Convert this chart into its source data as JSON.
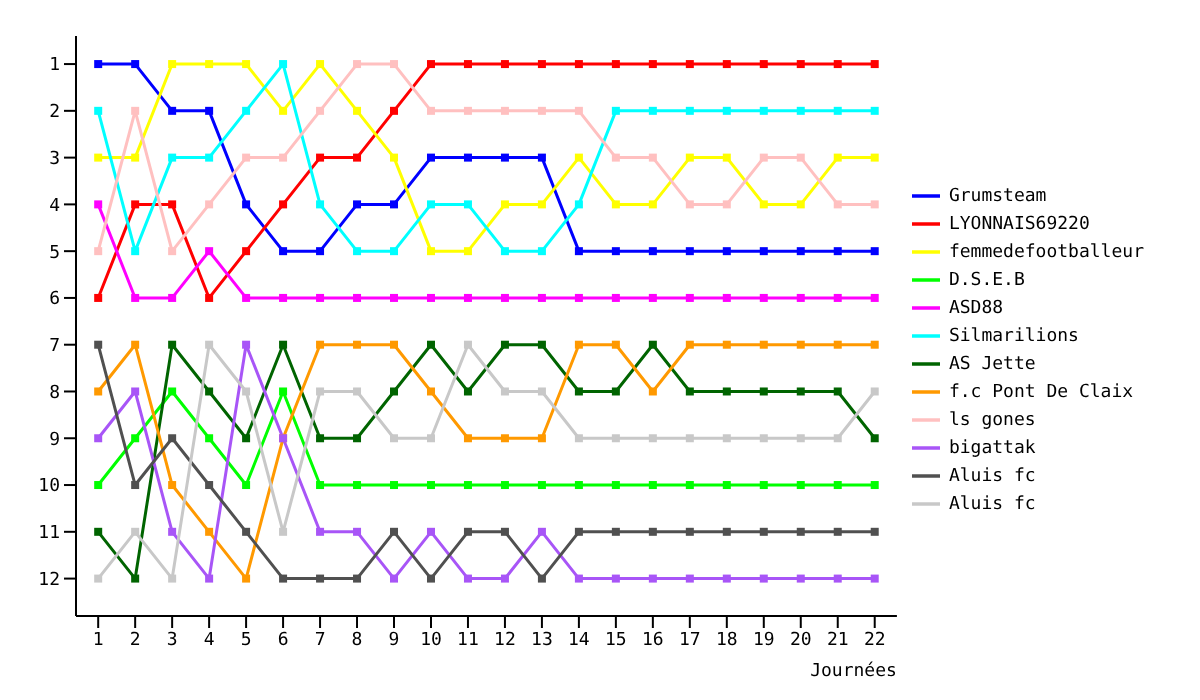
{
  "chart_data": {
    "type": "line",
    "xlabel": "Journées",
    "marker": "square",
    "line_style": "solid",
    "grid": false,
    "legend": "right",
    "x": [
      1,
      2,
      3,
      4,
      5,
      6,
      7,
      8,
      9,
      10,
      11,
      12,
      13,
      14,
      15,
      16,
      17,
      18,
      19,
      20,
      21,
      22
    ],
    "xlim": [
      0.4,
      22.6
    ],
    "xticks": [
      1,
      2,
      3,
      4,
      5,
      6,
      7,
      8,
      9,
      10,
      11,
      12,
      13,
      14,
      15,
      16,
      17,
      18,
      19,
      20,
      21,
      22
    ],
    "ylim": [
      12.8,
      0.4
    ],
    "yticks": [
      1,
      2,
      3,
      4,
      5,
      6,
      7,
      8,
      9,
      10,
      11,
      12
    ],
    "series": [
      {
        "name": "Grumsteam",
        "color": "#0000ff",
        "values": [
          1,
          1,
          2,
          2,
          4,
          5,
          5,
          4,
          4,
          3,
          3,
          3,
          3,
          5,
          5,
          5,
          5,
          5,
          5,
          5,
          5,
          5
        ]
      },
      {
        "name": "LYONNAIS69220",
        "color": "#ff0000",
        "values": [
          6,
          4,
          4,
          6,
          5,
          4,
          3,
          3,
          2,
          1,
          1,
          1,
          1,
          1,
          1,
          1,
          1,
          1,
          1,
          1,
          1,
          1
        ]
      },
      {
        "name": "femmedefootballeur",
        "color": "#ffff00",
        "values": [
          3,
          3,
          1,
          1,
          1,
          2,
          1,
          2,
          3,
          5,
          5,
          4,
          4,
          3,
          4,
          4,
          3,
          3,
          4,
          4,
          3,
          3
        ]
      },
      {
        "name": "D.S.E.B",
        "color": "#00ff00",
        "values": [
          10,
          9,
          8,
          9,
          10,
          8,
          10,
          10,
          10,
          10,
          10,
          10,
          10,
          10,
          10,
          10,
          10,
          10,
          10,
          10,
          10,
          10
        ]
      },
      {
        "name": "ASD88",
        "color": "#ff00ff",
        "values": [
          4,
          6,
          6,
          5,
          6,
          6,
          6,
          6,
          6,
          6,
          6,
          6,
          6,
          6,
          6,
          6,
          6,
          6,
          6,
          6,
          6,
          6
        ]
      },
      {
        "name": "Silmarilions",
        "color": "#00ffff",
        "values": [
          2,
          5,
          3,
          3,
          2,
          1,
          4,
          5,
          5,
          4,
          4,
          5,
          5,
          4,
          2,
          2,
          2,
          2,
          2,
          2,
          2,
          2
        ]
      },
      {
        "name": "AS Jette",
        "color": "#006400",
        "values": [
          11,
          12,
          7,
          8,
          9,
          7,
          9,
          9,
          8,
          7,
          8,
          7,
          7,
          8,
          8,
          7,
          8,
          8,
          8,
          8,
          8,
          9
        ]
      },
      {
        "name": "f.c Pont De Claix",
        "color": "#ff9900",
        "values": [
          8,
          7,
          10,
          11,
          12,
          9,
          7,
          7,
          7,
          8,
          9,
          9,
          9,
          7,
          7,
          8,
          7,
          7,
          7,
          7,
          7,
          7
        ]
      },
      {
        "name": "ls gones",
        "color": "#ffc0c0",
        "values": [
          5,
          2,
          5,
          4,
          3,
          3,
          2,
          1,
          1,
          2,
          2,
          2,
          2,
          2,
          3,
          3,
          4,
          4,
          3,
          3,
          4,
          4
        ]
      },
      {
        "name": "bigattak",
        "color": "#a855f7",
        "values": [
          9,
          8,
          11,
          12,
          7,
          9,
          11,
          11,
          12,
          11,
          12,
          12,
          11,
          12,
          12,
          12,
          12,
          12,
          12,
          12,
          12,
          12
        ]
      },
      {
        "name": "Aluis fc",
        "color": "#505050",
        "values": [
          7,
          10,
          9,
          10,
          11,
          12,
          12,
          12,
          11,
          12,
          11,
          11,
          12,
          11,
          11,
          11,
          11,
          11,
          11,
          11,
          11,
          11
        ]
      },
      {
        "name": "Aluis fc",
        "color": "#c8c8c8",
        "values": [
          12,
          11,
          12,
          7,
          8,
          11,
          8,
          8,
          9,
          9,
          7,
          8,
          8,
          9,
          9,
          9,
          9,
          9,
          9,
          9,
          9,
          8
        ]
      }
    ]
  }
}
